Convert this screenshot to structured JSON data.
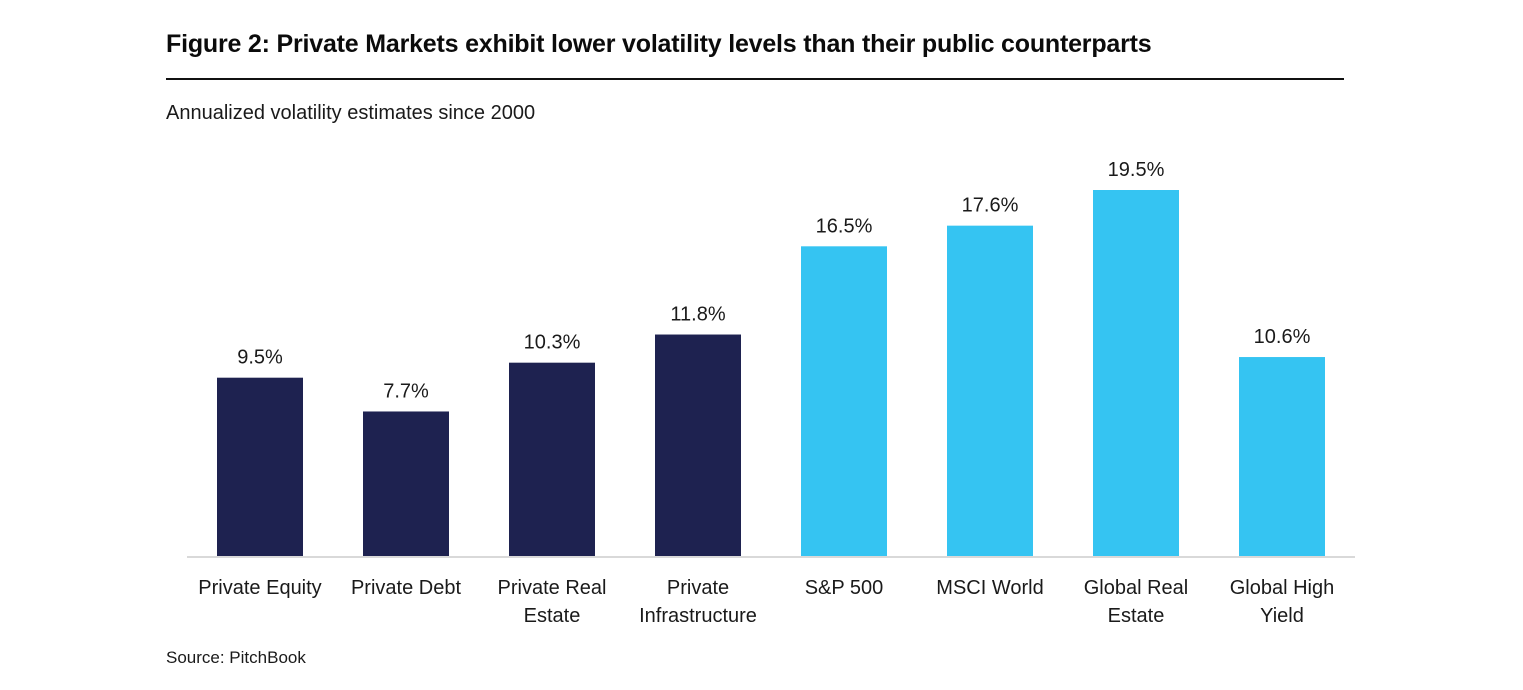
{
  "figure": {
    "title": "Figure 2: Private Markets exhibit lower volatility levels than their public counterparts",
    "subtitle": "Annualized volatility estimates since 2000",
    "source": "Source: PitchBook"
  },
  "colors": {
    "private": "#1e2250",
    "public": "#35c4f2",
    "axis": "#d9d9d9",
    "text": "#1a1a1a"
  },
  "chart_data": {
    "type": "bar",
    "title": "Figure 2: Private Markets exhibit lower volatility levels than their public counterparts",
    "subtitle": "Annualized volatility estimates since 2000",
    "xlabel": "",
    "ylabel": "",
    "ylim": [
      0,
      19.5
    ],
    "grid": false,
    "legend": "none",
    "unit": "%",
    "categories": [
      [
        "Private Equity"
      ],
      [
        "Private Debt"
      ],
      [
        "Private Real",
        "Estate"
      ],
      [
        "Private",
        "Infrastructure"
      ],
      [
        "S&P 500"
      ],
      [
        "MSCI World"
      ],
      [
        "Global Real",
        "Estate"
      ],
      [
        "Global High",
        "Yield"
      ]
    ],
    "category_names": [
      "Private Equity",
      "Private Debt",
      "Private Real Estate",
      "Private Infrastructure",
      "S&P 500",
      "MSCI World",
      "Global Real Estate",
      "Global High Yield"
    ],
    "values": [
      9.5,
      7.7,
      10.3,
      11.8,
      16.5,
      17.6,
      19.5,
      10.6
    ],
    "data_labels": [
      "9.5%",
      "7.7%",
      "10.3%",
      "11.8%",
      "16.5%",
      "17.6%",
      "19.5%",
      "10.6%"
    ],
    "groups": [
      "private",
      "private",
      "private",
      "private",
      "public",
      "public",
      "public",
      "public"
    ]
  }
}
